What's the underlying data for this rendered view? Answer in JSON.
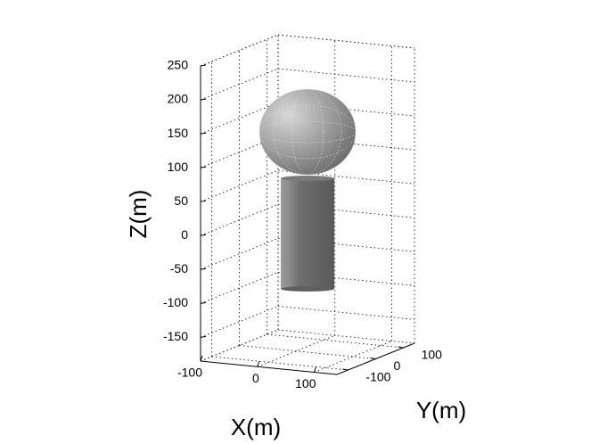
{
  "chart_data": {
    "type": "surface3d",
    "xlabel": "X(m)",
    "ylabel": "Y(m)",
    "zlabel": "Z(m)",
    "xlim": [
      -100,
      140
    ],
    "ylim": [
      -140,
      140
    ],
    "zlim": [
      -185,
      250
    ],
    "xticks": [
      -100,
      0,
      100
    ],
    "yticks": [
      -100,
      0,
      100
    ],
    "zticks": [
      -150,
      -100,
      -50,
      0,
      50,
      100,
      150,
      200,
      250
    ],
    "grid": true
  }
}
